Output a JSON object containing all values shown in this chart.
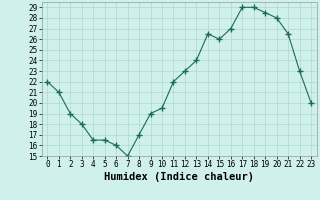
{
  "x": [
    0,
    1,
    2,
    3,
    4,
    5,
    6,
    7,
    8,
    9,
    10,
    11,
    12,
    13,
    14,
    15,
    16,
    17,
    18,
    19,
    20,
    21,
    22,
    23
  ],
  "y": [
    22,
    21,
    19,
    18,
    16.5,
    16.5,
    16,
    15,
    17,
    19,
    19.5,
    22,
    23,
    24,
    26.5,
    26,
    27,
    29,
    29,
    28.5,
    28,
    26.5,
    23,
    20
  ],
  "line_color": "#1a6b5a",
  "marker": "+",
  "marker_size": 4,
  "bg_color": "#cff0eb",
  "grid_color": "#aad8d0",
  "xlabel": "Humidex (Indice chaleur)",
  "xlim": [
    -0.5,
    23.5
  ],
  "ylim": [
    15,
    29.5
  ],
  "yticks": [
    15,
    16,
    17,
    18,
    19,
    20,
    21,
    22,
    23,
    24,
    25,
    26,
    27,
    28,
    29
  ],
  "xticks": [
    0,
    1,
    2,
    3,
    4,
    5,
    6,
    7,
    8,
    9,
    10,
    11,
    12,
    13,
    14,
    15,
    16,
    17,
    18,
    19,
    20,
    21,
    22,
    23
  ],
  "tick_label_size": 5.5,
  "xlabel_fontsize": 7.5
}
